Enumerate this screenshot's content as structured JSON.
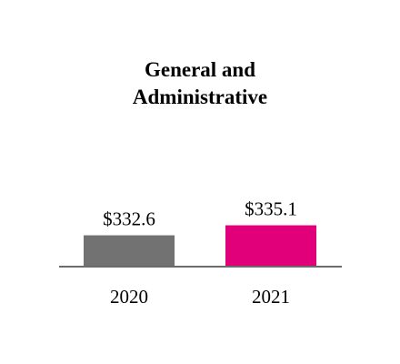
{
  "chart_data": {
    "type": "bar",
    "title_lines": [
      "General and",
      "Administrative"
    ],
    "categories": [
      "2020",
      "2021"
    ],
    "values": [
      332.6,
      335.1
    ],
    "value_labels": [
      "$332.6",
      "$335.1"
    ],
    "bar_colors": [
      "#727272",
      "#e2007a"
    ],
    "axis_color": "#6b6b6b",
    "xlabel": "",
    "ylabel": "",
    "grid": false,
    "legend": "none"
  }
}
